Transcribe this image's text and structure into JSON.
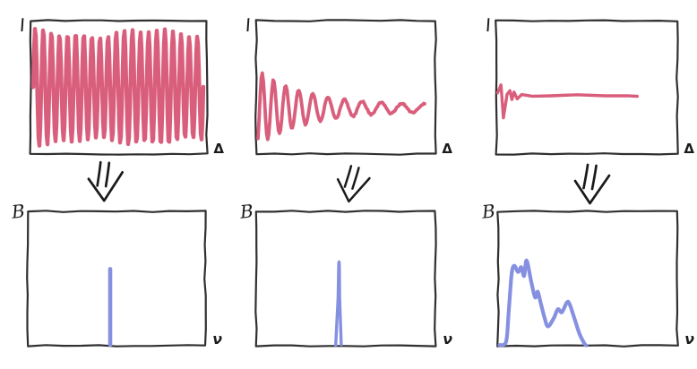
{
  "colors": {
    "signal_pink": "#d95e7c",
    "spectrum_blue": "#8690e1",
    "frame": "#303030",
    "label": "#1b1b1b",
    "arrow": "#1a1a1a",
    "background": "#ffffff"
  },
  "figure": {
    "panels": [
      {
        "id": "interferogram-monochromatic",
        "ylabel": "I",
        "xlabel": "Δ",
        "series_color": "pink",
        "curve": {
          "type": "sine",
          "cycles": 21,
          "peak_to_peak": 0.85,
          "center": 0.5
        }
      },
      {
        "id": "interferogram-damped-oscillation",
        "ylabel": "I",
        "xlabel": "Δ",
        "series_color": "pink",
        "curve": {
          "type": "damped",
          "center": 0.655,
          "initial_amplitude": 0.26,
          "decay": 0.27,
          "period_start": 0.058,
          "period_growth": 0.075,
          "end": 0.94
        }
      },
      {
        "id": "interferogram-short-transient",
        "ylabel": "I",
        "xlabel": "Δ",
        "series_color": "pink",
        "curve": {
          "type": "polyline",
          "smooth": false,
          "points": [
            [
              0.012,
              0.45
            ],
            [
              0.03,
              0.51
            ],
            [
              0.045,
              0.27
            ],
            [
              0.062,
              0.44
            ],
            [
              0.078,
              0.47
            ],
            [
              0.09,
              0.4
            ],
            [
              0.103,
              0.46
            ],
            [
              0.118,
              0.41
            ],
            [
              0.145,
              0.44
            ],
            [
              0.2,
              0.425
            ],
            [
              0.3,
              0.432
            ],
            [
              0.45,
              0.44
            ],
            [
              0.6,
              0.43
            ],
            [
              0.72,
              0.433
            ],
            [
              0.775,
              0.43
            ]
          ]
        }
      },
      {
        "id": "spectrum-delta-line",
        "ylabel": "B",
        "xlabel": "ν",
        "series_color": "blue",
        "curve": {
          "type": "delta",
          "x": 0.465,
          "height": 0.57
        }
      },
      {
        "id": "spectrum-narrow-peak",
        "ylabel": "B",
        "xlabel": "ν",
        "series_color": "blue",
        "curve": {
          "type": "polyline",
          "smooth": false,
          "points": [
            [
              0.443,
              0.005
            ],
            [
              0.456,
              0.35
            ],
            [
              0.46,
              0.6
            ],
            [
              0.463,
              0.615
            ],
            [
              0.466,
              0.58
            ],
            [
              0.468,
              0.35
            ],
            [
              0.476,
              0.005
            ]
          ]
        }
      },
      {
        "id": "spectrum-broadband",
        "ylabel": "B",
        "xlabel": "ν",
        "series_color": "blue",
        "curve": {
          "type": "polyline",
          "smooth": true,
          "points": [
            [
              0.012,
              0.005
            ],
            [
              0.05,
              0.03
            ],
            [
              0.064,
              0.24
            ],
            [
              0.074,
              0.47
            ],
            [
              0.082,
              0.56
            ],
            [
              0.096,
              0.585
            ],
            [
              0.114,
              0.54
            ],
            [
              0.134,
              0.58
            ],
            [
              0.149,
              0.51
            ],
            [
              0.163,
              0.625
            ],
            [
              0.188,
              0.47
            ],
            [
              0.208,
              0.355
            ],
            [
              0.222,
              0.4
            ],
            [
              0.238,
              0.32
            ],
            [
              0.262,
              0.21
            ],
            [
              0.282,
              0.14
            ],
            [
              0.312,
              0.2
            ],
            [
              0.337,
              0.265
            ],
            [
              0.356,
              0.245
            ],
            [
              0.386,
              0.32
            ],
            [
              0.401,
              0.3
            ],
            [
              0.426,
              0.2
            ],
            [
              0.455,
              0.09
            ],
            [
              0.48,
              0.02
            ],
            [
              0.493,
              0.005
            ]
          ]
        }
      }
    ],
    "arrows": [
      {
        "icon": "double-stroke-down-arrow"
      },
      {
        "icon": "double-stroke-down-arrow"
      },
      {
        "icon": "double-stroke-down-arrow"
      }
    ]
  }
}
